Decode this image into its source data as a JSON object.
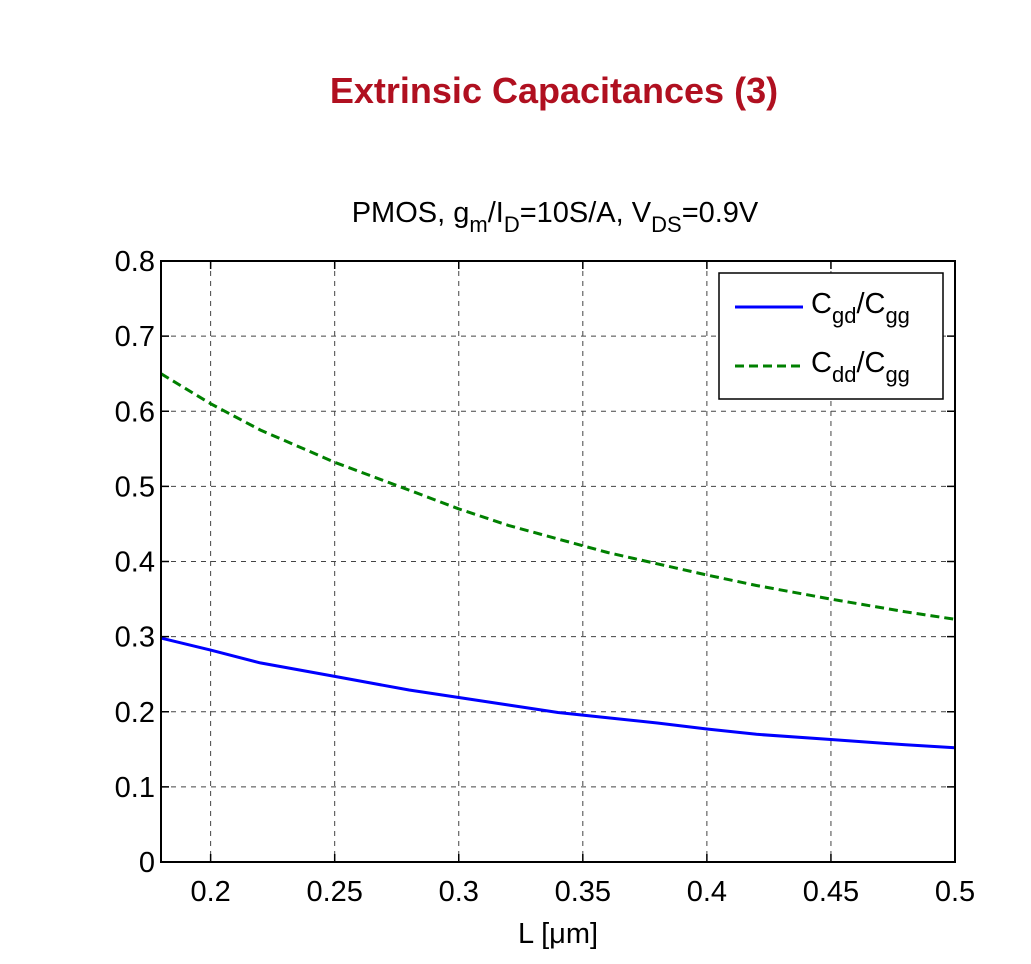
{
  "slide": {
    "title": "Extrinsic Capacitances (3)"
  },
  "chart_data": {
    "type": "line",
    "title": "PMOS, g_m/I_D=10S/A, V_DS=0.9V",
    "title_parts": [
      "PMOS, g",
      "m",
      "/I",
      "D",
      "=10S/A, V",
      "DS",
      "=0.9V"
    ],
    "xlabel": "L  [μm]",
    "ylabel": "",
    "xlim": [
      0.18,
      0.5
    ],
    "ylim": [
      0,
      0.8
    ],
    "grid": true,
    "xticks": [
      0.2,
      0.25,
      0.3,
      0.35,
      0.4,
      0.45,
      0.5
    ],
    "xtick_labels": [
      "0.2",
      "0.25",
      "0.3",
      "0.35",
      "0.4",
      "0.45",
      "0.5"
    ],
    "yticks": [
      0,
      0.1,
      0.2,
      0.3,
      0.4,
      0.5,
      0.6,
      0.7,
      0.8
    ],
    "ytick_labels": [
      "0",
      "0.1",
      "0.2",
      "0.3",
      "0.4",
      "0.5",
      "0.6",
      "0.7",
      "0.8"
    ],
    "legend_position": "top-right",
    "series": [
      {
        "name": "C_gd/C_gg",
        "label_main1": "C",
        "label_sub1": "gd",
        "label_main2": "/C",
        "label_sub2": "gg",
        "color": "#0000ff",
        "dash": "solid",
        "x": [
          0.18,
          0.2,
          0.22,
          0.25,
          0.28,
          0.3,
          0.32,
          0.34,
          0.36,
          0.38,
          0.4,
          0.42,
          0.45,
          0.48,
          0.5
        ],
        "values": [
          0.298,
          0.282,
          0.265,
          0.247,
          0.229,
          0.219,
          0.209,
          0.199,
          0.192,
          0.185,
          0.177,
          0.17,
          0.163,
          0.156,
          0.152
        ]
      },
      {
        "name": "C_dd/C_gg",
        "label_main1": "C",
        "label_sub1": "dd",
        "label_main2": "/C",
        "label_sub2": "gg",
        "color": "#008000",
        "dash": "dashed",
        "x": [
          0.18,
          0.2,
          0.22,
          0.25,
          0.28,
          0.3,
          0.32,
          0.34,
          0.36,
          0.38,
          0.4,
          0.42,
          0.45,
          0.48,
          0.5
        ],
        "values": [
          0.65,
          0.61,
          0.575,
          0.532,
          0.495,
          0.47,
          0.448,
          0.43,
          0.412,
          0.397,
          0.382,
          0.368,
          0.35,
          0.333,
          0.323
        ]
      }
    ]
  }
}
